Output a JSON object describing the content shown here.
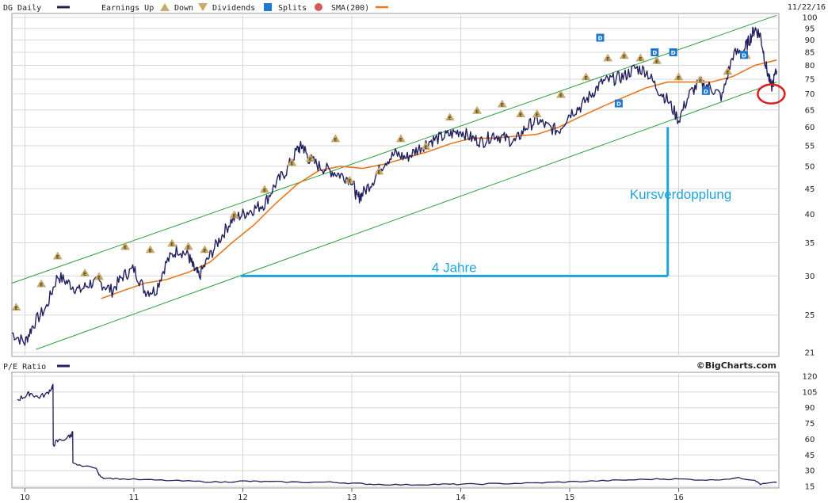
{
  "header": {
    "symbol_label": "DG Daily",
    "earnings_up_label": "Earnings Up",
    "down_label": "Down",
    "dividends_label": "Dividends",
    "splits_label": "Splits",
    "sma_label": "SMA(200)",
    "date": "11/22/16"
  },
  "colors": {
    "price": "#22205e",
    "sma": "#e8781e",
    "channel": "#2f9e3a",
    "annotation": "#1ea3dc",
    "earnings_marker": "#c9ac6d",
    "dividend_marker": "#1e78d2",
    "split_marker": "#d55a5a",
    "highlight_circle": "#dd1c1c",
    "grid": "#d8d8d8"
  },
  "icons": {
    "earnings": "earnings-triangle-icon",
    "dividends": "dividend-square-icon",
    "splits": "split-circle-icon"
  },
  "annotations": {
    "horizontal_label": "4 Jahre",
    "vertical_label": "Kursverdopplung"
  },
  "lower": {
    "title": "P/E Ratio",
    "credit": "©BigCharts.com"
  },
  "chart_data": [
    {
      "type": "line",
      "title": "",
      "x_unit": "year",
      "x_ticks": [
        "10",
        "11",
        "12",
        "13",
        "14",
        "15",
        "16"
      ],
      "xlim": [
        2010.0,
        2016.9
      ],
      "y_scale": "log",
      "ylim": [
        21,
        100
      ],
      "y_ticks": [
        21,
        25,
        30,
        35,
        40,
        45,
        50,
        55,
        60,
        65,
        70,
        75,
        80,
        85,
        90,
        95,
        100
      ],
      "grid": true,
      "series": [
        {
          "name": "DG Daily",
          "x": [
            2009.88,
            2010.0,
            2010.08,
            2010.2,
            2010.3,
            2010.4,
            2010.5,
            2010.6,
            2010.7,
            2010.8,
            2010.9,
            2011.0,
            2011.1,
            2011.2,
            2011.3,
            2011.4,
            2011.5,
            2011.55,
            2011.6,
            2011.7,
            2011.8,
            2011.9,
            2012.0,
            2012.1,
            2012.2,
            2012.3,
            2012.4,
            2012.5,
            2012.55,
            2012.6,
            2012.7,
            2012.8,
            2012.9,
            2013.0,
            2013.05,
            2013.1,
            2013.2,
            2013.3,
            2013.4,
            2013.5,
            2013.6,
            2013.7,
            2013.8,
            2013.9,
            2014.0,
            2014.1,
            2014.2,
            2014.3,
            2014.4,
            2014.5,
            2014.6,
            2014.7,
            2014.8,
            2014.9,
            2015.0,
            2015.1,
            2015.2,
            2015.3,
            2015.4,
            2015.5,
            2015.6,
            2015.7,
            2015.8,
            2015.9,
            2016.0,
            2016.1,
            2016.2,
            2016.3,
            2016.4,
            2016.5,
            2016.6,
            2016.65,
            2016.7,
            2016.75,
            2016.8,
            2016.85,
            2016.9
          ],
          "values": [
            23,
            22,
            24,
            26,
            30,
            29,
            28,
            29,
            29,
            28,
            30,
            31,
            28,
            28,
            32,
            34,
            33,
            31,
            30,
            33,
            36,
            39,
            40,
            41,
            42,
            46,
            49,
            54,
            55,
            52,
            50,
            49,
            48,
            47,
            43,
            44,
            47,
            51,
            53,
            52,
            54,
            56,
            57,
            58,
            59,
            57,
            56,
            58,
            57,
            56,
            60,
            62,
            60,
            59,
            64,
            66,
            70,
            74,
            75,
            76,
            79,
            78,
            72,
            68,
            62,
            70,
            74,
            72,
            69,
            84,
            86,
            90,
            95,
            92,
            80,
            72,
            78
          ]
        },
        {
          "name": "SMA(200)",
          "x": [
            2010.7,
            2010.9,
            2011.1,
            2011.3,
            2011.5,
            2011.7,
            2011.9,
            2012.1,
            2012.3,
            2012.5,
            2012.7,
            2012.9,
            2013.1,
            2013.3,
            2013.5,
            2013.7,
            2013.9,
            2014.1,
            2014.3,
            2014.5,
            2014.7,
            2014.9,
            2015.1,
            2015.3,
            2015.5,
            2015.7,
            2015.9,
            2016.1,
            2016.3,
            2016.5,
            2016.7,
            2016.9
          ],
          "values": [
            27,
            28,
            29,
            29.5,
            30.5,
            32,
            35,
            38,
            42,
            46,
            49,
            50,
            49.5,
            50.5,
            52,
            53.5,
            55.5,
            57,
            57,
            57.5,
            58,
            60,
            63,
            66,
            69,
            72,
            74,
            74,
            74,
            76,
            80,
            82
          ]
        }
      ],
      "channel_lines": [
        {
          "x": [
            2009.88,
            2016.9
          ],
          "values": [
            29,
            101
          ]
        },
        {
          "x": [
            2010.1,
            2016.9
          ],
          "values": [
            21.3,
            74
          ]
        }
      ],
      "earnings_markers": {
        "x": [
          2009.92,
          2010.15,
          2010.3,
          2010.55,
          2010.68,
          2010.92,
          2011.15,
          2011.35,
          2011.5,
          2011.65,
          2011.92,
          2012.2,
          2012.45,
          2012.62,
          2012.85,
          2012.98,
          2013.25,
          2013.45,
          2013.68,
          2013.9,
          2014.15,
          2014.38,
          2014.55,
          2014.7,
          2014.92,
          2015.15,
          2015.35,
          2015.5,
          2015.65,
          2015.8,
          2016.0,
          2016.2,
          2016.45,
          2016.62
        ],
        "values": [
          26,
          29,
          33,
          30.5,
          30,
          34.5,
          34,
          35,
          34.5,
          34,
          40,
          45,
          51,
          52,
          57,
          47,
          49,
          57,
          55,
          63,
          65,
          67,
          64,
          64,
          70,
          76,
          83,
          84,
          83,
          82,
          76,
          75,
          78,
          84
        ]
      },
      "dividend_markers": {
        "x": [
          2015.28,
          2015.45,
          2015.78,
          2015.95,
          2016.25,
          2016.6
        ],
        "values": [
          91,
          67,
          85,
          85,
          71,
          84
        ]
      },
      "annotations": [
        {
          "label": "4 Jahre",
          "kind": "horizontal",
          "x": [
            2011.98,
            2015.9
          ],
          "y": 30
        },
        {
          "label": "Kursverdopplung",
          "kind": "vertical",
          "x": 2015.9,
          "y": [
            30,
            60
          ]
        },
        {
          "label": "",
          "kind": "circle",
          "x": 2016.85,
          "y": 70
        }
      ]
    },
    {
      "type": "line",
      "title": "P/E Ratio",
      "xlim": [
        2010.0,
        2016.9
      ],
      "ylim": [
        15,
        120
      ],
      "y_ticks": [
        15,
        30,
        45,
        60,
        75,
        90,
        105,
        120
      ],
      "grid": true,
      "series": [
        {
          "name": "P/E Ratio",
          "x": [
            2009.93,
            2010.0,
            2010.05,
            2010.12,
            2010.2,
            2010.25,
            2010.26,
            2010.3,
            2010.4,
            2010.43,
            2010.44,
            2010.5,
            2010.65,
            2010.68,
            2010.72,
            2010.9,
            2011.2,
            2011.5,
            2011.8,
            2012.0,
            2012.2,
            2012.5,
            2012.8,
            2013.0,
            2013.2,
            2013.5,
            2013.8,
            2014.0,
            2014.3,
            2014.6,
            2014.9,
            2015.2,
            2015.5,
            2015.8,
            2016.0,
            2016.3,
            2016.55,
            2016.7,
            2016.75,
            2016.9
          ],
          "values": [
            98,
            101,
            104,
            100,
            103,
            110,
            55,
            58,
            62,
            65,
            37,
            35,
            33,
            26,
            23,
            22,
            21,
            20,
            19,
            20,
            19.5,
            19,
            19,
            18,
            17,
            16.5,
            17,
            17,
            17.5,
            18,
            19,
            20,
            21,
            22,
            22,
            21,
            23,
            21,
            17,
            19
          ]
        }
      ]
    }
  ]
}
